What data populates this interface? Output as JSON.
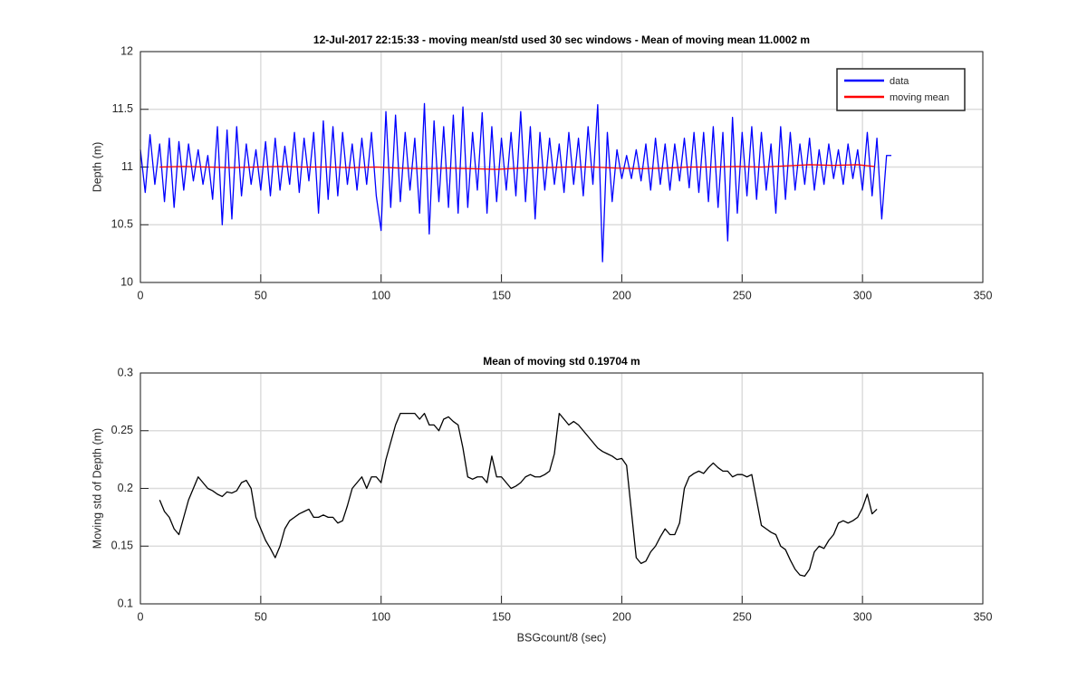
{
  "chart_data": [
    {
      "type": "line",
      "title": "12-Jul-2017 22:15:33 - moving mean/std used 30 sec windows - Mean of moving mean 11.0002 m",
      "ylabel": "Depth (m)",
      "xlim": [
        0,
        350
      ],
      "ylim": [
        10,
        12
      ],
      "xticks": [
        0,
        50,
        100,
        150,
        200,
        250,
        300,
        350
      ],
      "yticks": [
        10,
        10.5,
        11,
        11.5,
        12
      ],
      "grid": true,
      "legend": "northeast",
      "series": [
        {
          "name": "data",
          "color": "#0000ff",
          "x": [
            0,
            2,
            4,
            6,
            8,
            10,
            12,
            14,
            16,
            18,
            20,
            22,
            24,
            26,
            28,
            30,
            32,
            34,
            36,
            38,
            40,
            42,
            44,
            46,
            48,
            50,
            52,
            54,
            56,
            58,
            60,
            62,
            64,
            66,
            68,
            70,
            72,
            74,
            76,
            78,
            80,
            82,
            84,
            86,
            88,
            90,
            92,
            94,
            96,
            98,
            100,
            102,
            104,
            106,
            108,
            110,
            112,
            114,
            116,
            118,
            120,
            122,
            124,
            126,
            128,
            130,
            132,
            134,
            136,
            138,
            140,
            142,
            144,
            146,
            148,
            150,
            152,
            154,
            156,
            158,
            160,
            162,
            164,
            166,
            168,
            170,
            172,
            174,
            176,
            178,
            180,
            182,
            184,
            186,
            188,
            190,
            192,
            194,
            196,
            198,
            200,
            202,
            204,
            206,
            208,
            210,
            212,
            214,
            216,
            218,
            220,
            222,
            224,
            226,
            228,
            230,
            232,
            234,
            236,
            238,
            240,
            242,
            244,
            246,
            248,
            250,
            252,
            254,
            256,
            258,
            260,
            262,
            264,
            266,
            268,
            270,
            272,
            274,
            276,
            278,
            280,
            282,
            284,
            286,
            288,
            290,
            292,
            294,
            296,
            298,
            300,
            302,
            304,
            306,
            308,
            310,
            312
          ],
          "values": [
            11.15,
            10.78,
            11.28,
            10.85,
            11.2,
            10.7,
            11.25,
            10.65,
            11.22,
            10.8,
            11.2,
            10.88,
            11.15,
            10.85,
            11.1,
            10.72,
            11.35,
            10.5,
            11.32,
            10.55,
            11.35,
            10.75,
            11.2,
            10.85,
            11.15,
            10.8,
            11.22,
            10.75,
            11.25,
            10.8,
            11.18,
            10.85,
            11.3,
            10.78,
            11.25,
            10.88,
            11.3,
            10.6,
            11.4,
            10.72,
            11.35,
            10.75,
            11.3,
            10.85,
            11.2,
            10.8,
            11.25,
            10.85,
            11.3,
            10.75,
            10.45,
            11.48,
            10.65,
            11.45,
            10.7,
            11.3,
            10.8,
            11.25,
            10.6,
            11.55,
            10.42,
            11.4,
            10.7,
            11.35,
            10.65,
            11.45,
            10.6,
            11.52,
            10.65,
            11.3,
            10.8,
            11.47,
            10.6,
            11.35,
            10.7,
            11.25,
            10.8,
            11.3,
            10.75,
            11.48,
            10.7,
            11.35,
            10.55,
            11.3,
            10.8,
            11.25,
            10.85,
            11.2,
            10.78,
            11.3,
            10.85,
            11.25,
            10.75,
            11.35,
            10.85,
            11.54,
            10.18,
            11.3,
            10.7,
            11.15,
            10.9,
            11.1,
            10.9,
            11.15,
            10.88,
            11.2,
            10.8,
            11.25,
            10.85,
            11.2,
            10.8,
            11.2,
            10.88,
            11.25,
            10.82,
            11.3,
            10.78,
            11.3,
            10.7,
            11.35,
            10.65,
            11.3,
            10.36,
            11.43,
            10.6,
            11.3,
            10.75,
            11.35,
            10.72,
            11.3,
            10.8,
            11.2,
            10.6,
            11.35,
            10.72,
            11.3,
            10.8,
            11.2,
            10.85,
            11.25,
            10.8,
            11.15,
            10.85,
            11.2,
            10.9,
            11.15,
            10.85,
            11.2,
            10.9,
            11.15,
            10.8,
            11.3,
            10.75,
            11.25,
            10.55,
            11.1,
            11.1
          ]
        },
        {
          "name": "moving mean",
          "color": "#ff0000",
          "x": [
            8,
            18,
            28,
            38,
            48,
            58,
            68,
            78,
            88,
            98,
            108,
            118,
            128,
            138,
            148,
            158,
            168,
            178,
            188,
            198,
            208,
            218,
            228,
            238,
            248,
            258,
            268,
            278,
            288,
            298,
            305
          ],
          "values": [
            11.0,
            11.005,
            11.0,
            10.995,
            11.0,
            11.005,
            11.0,
            11.0,
            10.995,
            11.0,
            10.99,
            10.985,
            10.99,
            10.985,
            10.98,
            10.99,
            10.995,
            11.0,
            11.0,
            10.99,
            10.985,
            10.99,
            11.0,
            11.0,
            11.005,
            11.0,
            11.01,
            11.02,
            11.015,
            11.02,
            11.005
          ]
        }
      ]
    },
    {
      "type": "line",
      "title": "Mean of moving std 0.19704 m",
      "ylabel": "Moving std of Depth (m)",
      "xlabel": "BSGcount/8 (sec)",
      "xlim": [
        0,
        350
      ],
      "ylim": [
        0.1,
        0.3
      ],
      "xticks": [
        0,
        50,
        100,
        150,
        200,
        250,
        300,
        350
      ],
      "yticks": [
        0.1,
        0.15,
        0.2,
        0.25,
        0.3
      ],
      "grid": true,
      "series": [
        {
          "color": "#000000",
          "x": [
            8,
            10,
            12,
            14,
            16,
            18,
            20,
            22,
            24,
            26,
            28,
            30,
            32,
            34,
            36,
            38,
            40,
            42,
            44,
            46,
            48,
            50,
            52,
            54,
            56,
            58,
            60,
            62,
            64,
            66,
            68,
            70,
            72,
            74,
            76,
            78,
            80,
            82,
            84,
            86,
            88,
            90,
            92,
            94,
            96,
            98,
            100,
            102,
            104,
            106,
            108,
            110,
            112,
            114,
            116,
            118,
            120,
            122,
            124,
            126,
            128,
            130,
            132,
            134,
            136,
            138,
            140,
            142,
            144,
            146,
            148,
            150,
            152,
            154,
            156,
            158,
            160,
            162,
            164,
            166,
            168,
            170,
            172,
            174,
            176,
            178,
            180,
            182,
            184,
            186,
            188,
            190,
            192,
            194,
            196,
            198,
            200,
            202,
            204,
            206,
            208,
            210,
            212,
            214,
            216,
            218,
            220,
            222,
            224,
            226,
            228,
            230,
            232,
            234,
            236,
            238,
            240,
            242,
            244,
            246,
            248,
            250,
            252,
            254,
            256,
            258,
            260,
            262,
            264,
            266,
            268,
            270,
            272,
            274,
            276,
            278,
            280,
            282,
            284,
            286,
            288,
            290,
            292,
            294,
            296,
            298,
            300,
            302,
            304,
            306
          ],
          "values": [
            0.19,
            0.18,
            0.175,
            0.165,
            0.16,
            0.175,
            0.19,
            0.2,
            0.21,
            0.205,
            0.2,
            0.198,
            0.195,
            0.193,
            0.197,
            0.196,
            0.198,
            0.205,
            0.207,
            0.2,
            0.175,
            0.165,
            0.155,
            0.148,
            0.14,
            0.15,
            0.165,
            0.172,
            0.175,
            0.178,
            0.18,
            0.182,
            0.175,
            0.175,
            0.177,
            0.175,
            0.175,
            0.17,
            0.172,
            0.185,
            0.2,
            0.205,
            0.21,
            0.2,
            0.21,
            0.21,
            0.205,
            0.225,
            0.24,
            0.255,
            0.265,
            0.265,
            0.265,
            0.265,
            0.26,
            0.265,
            0.255,
            0.255,
            0.25,
            0.26,
            0.262,
            0.258,
            0.255,
            0.235,
            0.21,
            0.208,
            0.21,
            0.21,
            0.205,
            0.228,
            0.21,
            0.21,
            0.205,
            0.2,
            0.202,
            0.205,
            0.21,
            0.212,
            0.21,
            0.21,
            0.212,
            0.215,
            0.23,
            0.265,
            0.26,
            0.255,
            0.258,
            0.255,
            0.25,
            0.245,
            0.24,
            0.235,
            0.232,
            0.23,
            0.228,
            0.225,
            0.226,
            0.22,
            0.18,
            0.14,
            0.135,
            0.137,
            0.145,
            0.15,
            0.158,
            0.165,
            0.16,
            0.16,
            0.17,
            0.2,
            0.21,
            0.213,
            0.215,
            0.213,
            0.218,
            0.222,
            0.218,
            0.215,
            0.215,
            0.21,
            0.212,
            0.212,
            0.21,
            0.212,
            0.19,
            0.168,
            0.165,
            0.162,
            0.16,
            0.15,
            0.147,
            0.138,
            0.13,
            0.125,
            0.124,
            0.13,
            0.145,
            0.15,
            0.148,
            0.155,
            0.16,
            0.17,
            0.172,
            0.17,
            0.172,
            0.175,
            0.183,
            0.195,
            0.178,
            0.182
          ]
        }
      ]
    }
  ]
}
